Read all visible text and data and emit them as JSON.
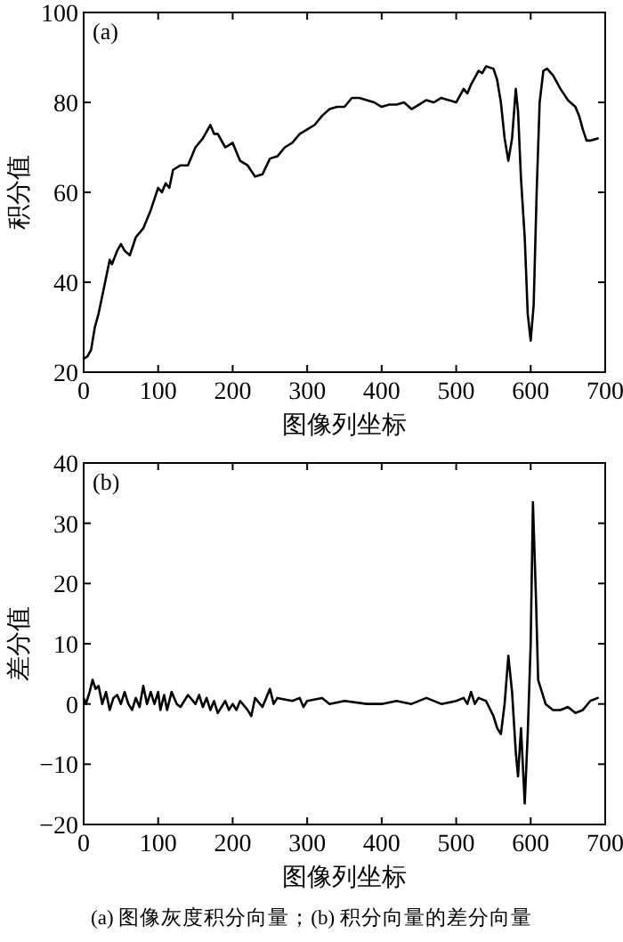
{
  "chart_data": [
    {
      "type": "line",
      "xlabel": "图像列坐标",
      "ylabel": "积分值",
      "annotations": [
        "(a)"
      ],
      "xlim": [
        0,
        700
      ],
      "ylim": [
        20,
        100
      ],
      "xticks": [
        0,
        100,
        200,
        300,
        400,
        500,
        600,
        700
      ],
      "yticks": [
        20,
        40,
        60,
        80,
        100
      ],
      "series": [
        {
          "color": "#000000",
          "x": [
            0,
            5,
            10,
            15,
            20,
            25,
            30,
            35,
            38,
            45,
            50,
            55,
            62,
            70,
            80,
            90,
            100,
            105,
            110,
            115,
            120,
            130,
            140,
            150,
            160,
            170,
            175,
            180,
            190,
            200,
            210,
            220,
            230,
            240,
            250,
            260,
            270,
            280,
            290,
            300,
            310,
            320,
            330,
            340,
            350,
            360,
            370,
            380,
            390,
            400,
            410,
            420,
            430,
            440,
            450,
            460,
            470,
            480,
            490,
            500,
            510,
            515,
            520,
            530,
            535,
            540,
            550,
            555,
            560,
            565,
            570,
            575,
            580,
            583,
            587,
            592,
            596,
            600,
            604,
            608,
            612,
            617,
            622,
            630,
            640,
            650,
            660,
            665,
            670,
            675,
            680,
            690
          ],
          "values": [
            23,
            23.5,
            25,
            30,
            33,
            37,
            41,
            45,
            44,
            47,
            48.5,
            47,
            46,
            50,
            52,
            56,
            61,
            60,
            62,
            61,
            65,
            66,
            66,
            70,
            72,
            75,
            73,
            73,
            70,
            71,
            67,
            66,
            63.5,
            64,
            67.5,
            68,
            70,
            71,
            73,
            74,
            75,
            77,
            78.5,
            79,
            79,
            81,
            81,
            80.5,
            80,
            79,
            79.5,
            79.5,
            80,
            78.5,
            79.5,
            80.5,
            80,
            81,
            80.5,
            80,
            83,
            82,
            84,
            87,
            86.5,
            88,
            87.5,
            85,
            80,
            72,
            67,
            72,
            83,
            78,
            63,
            50,
            33,
            27,
            35,
            60,
            80,
            87,
            87.5,
            86,
            83,
            80.5,
            79,
            77,
            74,
            71.5,
            71.5,
            72
          ]
        }
      ]
    },
    {
      "type": "line",
      "xlabel": "图像列坐标",
      "ylabel": "差分值",
      "annotations": [
        "(b)",
        "(a) 图像灰度积分向量；(b) 积分向量的差分向量"
      ],
      "xlim": [
        0,
        700
      ],
      "ylim": [
        -20,
        40
      ],
      "xticks": [
        0,
        100,
        200,
        300,
        400,
        500,
        600,
        700
      ],
      "yticks": [
        {
          "value": -20,
          "label": "−20"
        },
        {
          "value": -10,
          "label": "−10"
        },
        0,
        10,
        20,
        30,
        40
      ],
      "series": [
        {
          "color": "#000000",
          "x": [
            0,
            3,
            8,
            12,
            16,
            20,
            25,
            30,
            35,
            40,
            45,
            50,
            55,
            60,
            65,
            70,
            75,
            80,
            85,
            90,
            95,
            100,
            103,
            108,
            112,
            118,
            125,
            130,
            140,
            150,
            155,
            160,
            165,
            170,
            175,
            180,
            190,
            195,
            200,
            205,
            210,
            220,
            225,
            230,
            240,
            250,
            255,
            260,
            280,
            290,
            295,
            300,
            320,
            330,
            350,
            380,
            400,
            420,
            440,
            460,
            480,
            500,
            510,
            515,
            520,
            525,
            530,
            540,
            550,
            555,
            560,
            565,
            570,
            575,
            580,
            583,
            587,
            592,
            596,
            600,
            603,
            607,
            610,
            615,
            620,
            630,
            640,
            650,
            660,
            670,
            680,
            690
          ],
          "values": [
            1,
            0,
            2,
            4,
            2.5,
            3,
            0,
            2,
            -1,
            1,
            1.5,
            0,
            2,
            0,
            -1,
            1,
            -0.5,
            3,
            0,
            2,
            0,
            2,
            -1,
            1.5,
            -1,
            2,
            0,
            -0.5,
            1.5,
            0,
            1.5,
            -0.5,
            1,
            -1,
            0.5,
            -1.5,
            0.5,
            -1,
            0,
            -1,
            0.5,
            -1,
            -2,
            1,
            -0.5,
            2.5,
            0,
            1,
            0.5,
            1,
            -0.5,
            0.5,
            1,
            0,
            0.5,
            0,
            0,
            0.5,
            0,
            1,
            0,
            0.5,
            1,
            0,
            2,
            0,
            1,
            0.5,
            -2,
            -4,
            -5,
            0,
            8,
            2,
            -8,
            -12,
            -4,
            -16.5,
            -5,
            10,
            33.5,
            18,
            4,
            2,
            0,
            -1,
            -1,
            -0.5,
            -1.5,
            -1,
            0.5,
            1
          ]
        }
      ]
    }
  ]
}
